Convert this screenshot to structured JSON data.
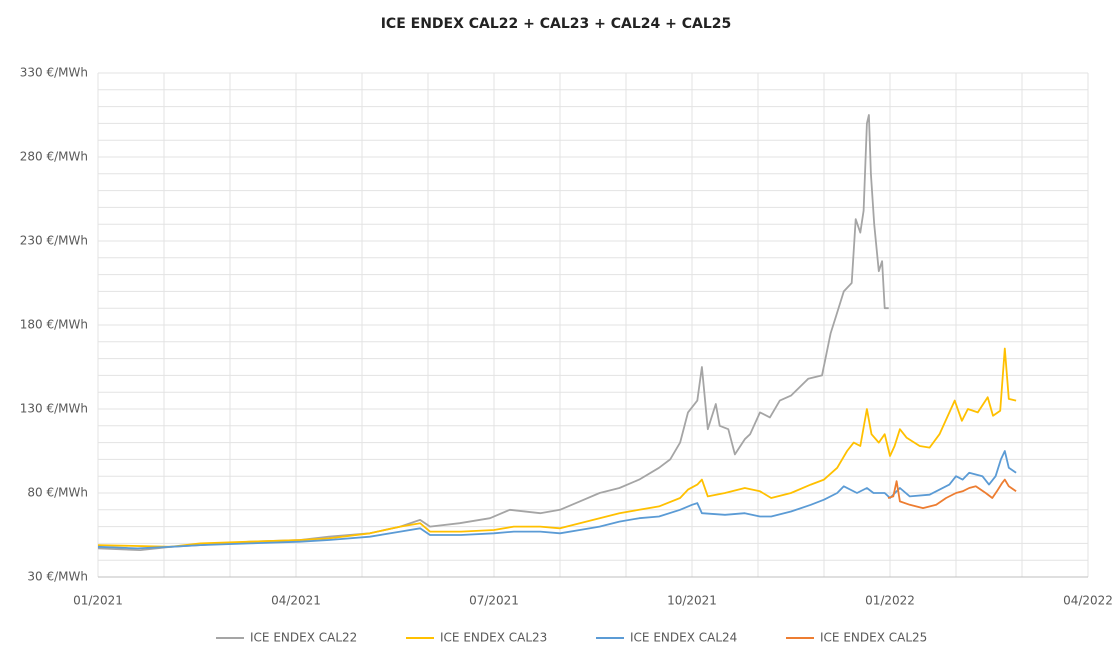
{
  "chart_data": {
    "type": "line",
    "title": "ICE ENDEX CAL22 + CAL23 + CAL24 + CAL25",
    "xlim": [
      0,
      15
    ],
    "xticks": [
      {
        "value": 0,
        "label": "01/2021"
      },
      {
        "value": 3,
        "label": "04/2021"
      },
      {
        "value": 6,
        "label": "07/2021"
      },
      {
        "value": 9,
        "label": "10/2021"
      },
      {
        "value": 12,
        "label": "01/2022"
      },
      {
        "value": 15,
        "label": "04/2022"
      }
    ],
    "ylim": [
      30,
      330
    ],
    "yticks": [
      {
        "value": 30,
        "label": "30 €/MWh"
      },
      {
        "value": 80,
        "label": "80 €/MWh"
      },
      {
        "value": 130,
        "label": "130 €/MWh"
      },
      {
        "value": 180,
        "label": "180 €/MWh"
      },
      {
        "value": 230,
        "label": "230 €/MWh"
      },
      {
        "value": 280,
        "label": "280 €/MWh"
      },
      {
        "value": 330,
        "label": "330 €/MWh"
      }
    ],
    "grid": true,
    "legend": "bottom",
    "series": [
      {
        "name": "ICE ENDEX CAL22",
        "color": "#a5a5a5",
        "x": [
          0,
          0.64,
          1.1,
          1.55,
          2.3,
          3.06,
          3.5,
          4.12,
          4.58,
          4.88,
          5.03,
          5.48,
          5.94,
          6.24,
          6.7,
          7.0,
          7.3,
          7.6,
          7.9,
          8.2,
          8.5,
          8.67,
          8.82,
          8.94,
          9.08,
          9.15,
          9.24,
          9.36,
          9.42,
          9.55,
          9.65,
          9.8,
          9.88,
          10.03,
          10.18,
          10.33,
          10.5,
          10.76,
          10.97,
          11.1,
          11.18,
          11.3,
          11.42,
          11.48,
          11.55,
          11.6,
          11.65,
          11.68,
          11.71,
          11.76,
          11.83,
          11.88,
          11.92,
          11.98
        ],
        "values": [
          47,
          46,
          48,
          49,
          51,
          52,
          54,
          56,
          60,
          64,
          60,
          62,
          65,
          70,
          68,
          70,
          75,
          80,
          83,
          88,
          95,
          100,
          110,
          128,
          135,
          155,
          118,
          133,
          120,
          118,
          103,
          112,
          115,
          128,
          125,
          135,
          138,
          148,
          150,
          175,
          185,
          200,
          205,
          243,
          235,
          248,
          300,
          305,
          270,
          240,
          212,
          218,
          190,
          190
        ]
      },
      {
        "name": "ICE ENDEX CAL23",
        "color": "#ffc000",
        "x": [
          0,
          1.1,
          1.55,
          2.3,
          3.06,
          3.5,
          4.12,
          4.58,
          4.88,
          5.03,
          5.5,
          6.0,
          6.3,
          6.7,
          7.0,
          7.3,
          7.6,
          7.9,
          8.2,
          8.5,
          8.82,
          8.94,
          9.08,
          9.15,
          9.24,
          9.5,
          9.8,
          10.03,
          10.2,
          10.5,
          10.8,
          11.0,
          11.2,
          11.35,
          11.45,
          11.55,
          11.65,
          11.72,
          11.83,
          11.92,
          12.0,
          12.07,
          12.15,
          12.25,
          12.45,
          12.6,
          12.75,
          12.98,
          13.09,
          13.18,
          13.33,
          13.48,
          13.56,
          13.67,
          13.74,
          13.8,
          13.91
        ],
        "values": [
          49,
          48,
          50,
          51,
          52,
          53,
          56,
          60,
          62,
          57,
          57,
          58,
          60,
          60,
          59,
          62,
          65,
          68,
          70,
          72,
          77,
          82,
          85,
          88,
          78,
          80,
          83,
          81,
          77,
          80,
          85,
          88,
          95,
          105,
          110,
          108,
          130,
          115,
          110,
          115,
          102,
          108,
          118,
          113,
          108,
          107,
          115,
          135,
          123,
          130,
          128,
          137,
          126,
          129,
          166,
          136,
          135
        ]
      },
      {
        "name": "ICE ENDEX CAL24",
        "color": "#5b9bd5",
        "x": [
          0,
          0.6,
          1.1,
          1.55,
          2.3,
          3.06,
          3.5,
          4.12,
          4.58,
          4.88,
          5.03,
          5.5,
          6.0,
          6.3,
          6.7,
          7.0,
          7.3,
          7.6,
          7.9,
          8.2,
          8.5,
          8.82,
          9.0,
          9.08,
          9.15,
          9.5,
          9.8,
          10.03,
          10.2,
          10.5,
          10.8,
          11.0,
          11.2,
          11.3,
          11.5,
          11.65,
          11.75,
          11.92,
          12.0,
          12.15,
          12.3,
          12.6,
          12.9,
          13.0,
          13.1,
          13.2,
          13.4,
          13.5,
          13.6,
          13.68,
          13.74,
          13.8,
          13.91
        ],
        "values": [
          48,
          47,
          48,
          49,
          50,
          51,
          52,
          54,
          57,
          59,
          55,
          55,
          56,
          57,
          57,
          56,
          58,
          60,
          63,
          65,
          66,
          70,
          73,
          74,
          68,
          67,
          68,
          66,
          66,
          69,
          73,
          76,
          80,
          84,
          80,
          83,
          80,
          80,
          77,
          83,
          78,
          79,
          85,
          90,
          88,
          92,
          90,
          85,
          90,
          100,
          105,
          95,
          92
        ]
      },
      {
        "name": "ICE ENDEX CAL25",
        "color": "#ed7d31",
        "x": [
          11.97,
          12.05,
          12.1,
          12.15,
          12.3,
          12.5,
          12.7,
          12.85,
          13.0,
          13.1,
          13.2,
          13.3,
          13.45,
          13.55,
          13.62,
          13.7,
          13.74,
          13.8,
          13.91
        ],
        "values": [
          77,
          78,
          87,
          75,
          73,
          71,
          73,
          77,
          80,
          81,
          83,
          84,
          80,
          77,
          81,
          86,
          88,
          84,
          81
        ]
      }
    ]
  }
}
